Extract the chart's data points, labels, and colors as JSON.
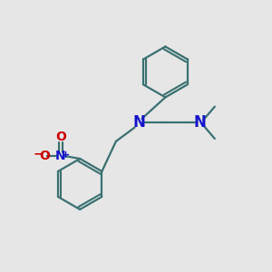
{
  "background_color": "#e6e6e6",
  "bond_color": "#3a7070",
  "nitrogen_color": "#1414cc",
  "oxygen_color": "#cc0000",
  "bond_width": 1.6,
  "figsize": [
    3.0,
    3.0
  ],
  "dpi": 100,
  "xlim": [
    0,
    10
  ],
  "ylim": [
    0,
    10
  ]
}
